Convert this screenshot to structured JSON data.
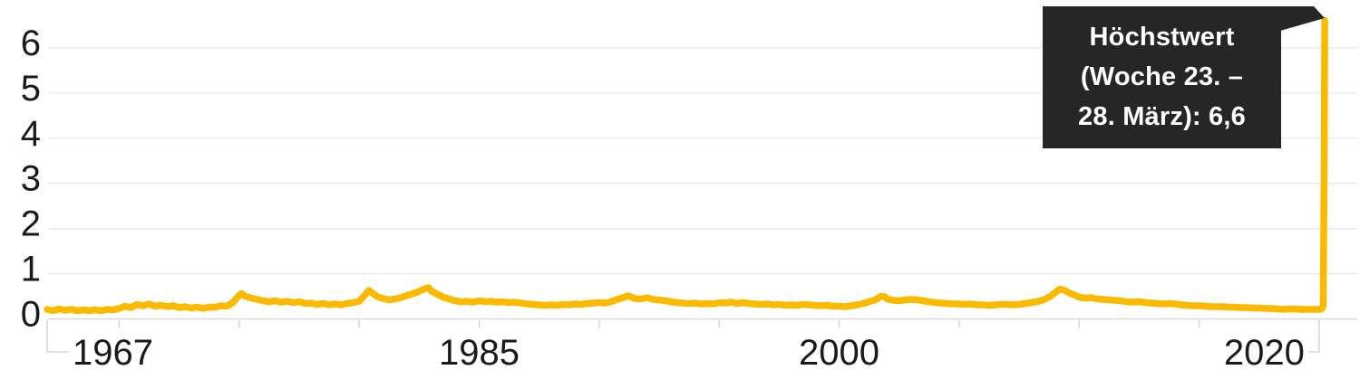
{
  "chart_data": {
    "type": "line",
    "y_axis": {
      "tick_labels": [
        "0",
        "1",
        "2",
        "3",
        "4",
        "5",
        "6"
      ],
      "ticks": [
        0,
        1,
        2,
        3,
        4,
        5,
        6
      ],
      "range": [
        0,
        6.7
      ],
      "grid": true
    },
    "x_axis": {
      "labeled_ticks": [
        {
          "year": 1967,
          "label": "1967"
        },
        {
          "year": 1985,
          "label": "1985"
        },
        {
          "year": 2000,
          "label": "2000"
        },
        {
          "year": 2020,
          "label": "2020"
        }
      ],
      "minor_tick_years": [
        1970,
        1975,
        1980,
        1985,
        1990,
        1995,
        2000,
        2005,
        2010,
        2015,
        2020
      ],
      "range": [
        1967,
        2021.6
      ]
    },
    "annotation": {
      "lines": [
        "Höchstwert",
        "(Woche 23. –",
        "28. März): 6,6"
      ],
      "value": 6.6,
      "anchor_year": 2020.235
    },
    "series": [
      {
        "points": [
          [
            1967.0,
            0.21
          ],
          [
            1967.25,
            0.18
          ],
          [
            1967.5,
            0.22
          ],
          [
            1967.75,
            0.19
          ],
          [
            1968.0,
            0.21
          ],
          [
            1968.25,
            0.18
          ],
          [
            1968.5,
            0.2
          ],
          [
            1968.75,
            0.18
          ],
          [
            1969.0,
            0.2
          ],
          [
            1969.25,
            0.18
          ],
          [
            1969.5,
            0.21
          ],
          [
            1969.75,
            0.2
          ],
          [
            1970.0,
            0.23
          ],
          [
            1970.25,
            0.28
          ],
          [
            1970.5,
            0.25
          ],
          [
            1970.75,
            0.32
          ],
          [
            1971.0,
            0.29
          ],
          [
            1971.25,
            0.33
          ],
          [
            1971.5,
            0.28
          ],
          [
            1971.75,
            0.3
          ],
          [
            1972.0,
            0.27
          ],
          [
            1972.25,
            0.29
          ],
          [
            1972.5,
            0.25
          ],
          [
            1972.75,
            0.27
          ],
          [
            1973.0,
            0.24
          ],
          [
            1973.25,
            0.26
          ],
          [
            1973.5,
            0.23
          ],
          [
            1973.75,
            0.26
          ],
          [
            1974.0,
            0.26
          ],
          [
            1974.25,
            0.29
          ],
          [
            1974.5,
            0.28
          ],
          [
            1974.75,
            0.37
          ],
          [
            1975.0,
            0.52
          ],
          [
            1975.1,
            0.56
          ],
          [
            1975.25,
            0.5
          ],
          [
            1975.5,
            0.46
          ],
          [
            1975.75,
            0.43
          ],
          [
            1976.0,
            0.4
          ],
          [
            1976.25,
            0.38
          ],
          [
            1976.5,
            0.4
          ],
          [
            1976.75,
            0.37
          ],
          [
            1977.0,
            0.39
          ],
          [
            1977.25,
            0.36
          ],
          [
            1977.5,
            0.38
          ],
          [
            1977.75,
            0.34
          ],
          [
            1978.0,
            0.35
          ],
          [
            1978.25,
            0.32
          ],
          [
            1978.5,
            0.34
          ],
          [
            1978.75,
            0.31
          ],
          [
            1979.0,
            0.33
          ],
          [
            1979.25,
            0.31
          ],
          [
            1979.5,
            0.34
          ],
          [
            1979.75,
            0.36
          ],
          [
            1980.0,
            0.39
          ],
          [
            1980.2,
            0.5
          ],
          [
            1980.4,
            0.63
          ],
          [
            1980.6,
            0.55
          ],
          [
            1980.8,
            0.48
          ],
          [
            1981.0,
            0.45
          ],
          [
            1981.25,
            0.42
          ],
          [
            1981.5,
            0.44
          ],
          [
            1981.75,
            0.47
          ],
          [
            1982.0,
            0.52
          ],
          [
            1982.25,
            0.56
          ],
          [
            1982.5,
            0.61
          ],
          [
            1982.75,
            0.67
          ],
          [
            1982.9,
            0.69
          ],
          [
            1983.0,
            0.62
          ],
          [
            1983.25,
            0.55
          ],
          [
            1983.5,
            0.48
          ],
          [
            1983.75,
            0.44
          ],
          [
            1984.0,
            0.4
          ],
          [
            1984.25,
            0.38
          ],
          [
            1984.5,
            0.39
          ],
          [
            1984.75,
            0.37
          ],
          [
            1985.0,
            0.4
          ],
          [
            1985.25,
            0.38
          ],
          [
            1985.5,
            0.39
          ],
          [
            1985.75,
            0.37
          ],
          [
            1986.0,
            0.38
          ],
          [
            1986.25,
            0.36
          ],
          [
            1986.5,
            0.37
          ],
          [
            1986.75,
            0.35
          ],
          [
            1987.0,
            0.33
          ],
          [
            1987.25,
            0.32
          ],
          [
            1987.5,
            0.31
          ],
          [
            1987.75,
            0.3
          ],
          [
            1988.0,
            0.31
          ],
          [
            1988.25,
            0.3
          ],
          [
            1988.5,
            0.32
          ],
          [
            1988.75,
            0.31
          ],
          [
            1989.0,
            0.33
          ],
          [
            1989.25,
            0.32
          ],
          [
            1989.5,
            0.34
          ],
          [
            1989.75,
            0.35
          ],
          [
            1990.0,
            0.36
          ],
          [
            1990.25,
            0.35
          ],
          [
            1990.5,
            0.38
          ],
          [
            1990.75,
            0.43
          ],
          [
            1991.0,
            0.47
          ],
          [
            1991.2,
            0.51
          ],
          [
            1991.5,
            0.45
          ],
          [
            1991.75,
            0.44
          ],
          [
            1992.0,
            0.47
          ],
          [
            1992.25,
            0.43
          ],
          [
            1992.5,
            0.42
          ],
          [
            1992.75,
            0.4
          ],
          [
            1993.0,
            0.38
          ],
          [
            1993.25,
            0.36
          ],
          [
            1993.5,
            0.35
          ],
          [
            1993.75,
            0.34
          ],
          [
            1994.0,
            0.35
          ],
          [
            1994.25,
            0.33
          ],
          [
            1994.5,
            0.34
          ],
          [
            1994.75,
            0.33
          ],
          [
            1995.0,
            0.36
          ],
          [
            1995.25,
            0.35
          ],
          [
            1995.5,
            0.37
          ],
          [
            1995.75,
            0.34
          ],
          [
            1996.0,
            0.36
          ],
          [
            1996.25,
            0.34
          ],
          [
            1996.5,
            0.33
          ],
          [
            1996.75,
            0.32
          ],
          [
            1997.0,
            0.33
          ],
          [
            1997.25,
            0.31
          ],
          [
            1997.5,
            0.32
          ],
          [
            1997.75,
            0.3
          ],
          [
            1998.0,
            0.31
          ],
          [
            1998.25,
            0.3
          ],
          [
            1998.5,
            0.32
          ],
          [
            1998.75,
            0.31
          ],
          [
            1999.0,
            0.3
          ],
          [
            1999.25,
            0.29
          ],
          [
            1999.5,
            0.3
          ],
          [
            1999.75,
            0.28
          ],
          [
            2000.0,
            0.28
          ],
          [
            2000.25,
            0.27
          ],
          [
            2000.5,
            0.29
          ],
          [
            2000.75,
            0.31
          ],
          [
            2001.0,
            0.34
          ],
          [
            2001.25,
            0.38
          ],
          [
            2001.5,
            0.42
          ],
          [
            2001.75,
            0.5
          ],
          [
            2001.9,
            0.49
          ],
          [
            2002.0,
            0.44
          ],
          [
            2002.25,
            0.41
          ],
          [
            2002.5,
            0.4
          ],
          [
            2002.75,
            0.42
          ],
          [
            2003.0,
            0.43
          ],
          [
            2003.25,
            0.42
          ],
          [
            2003.5,
            0.4
          ],
          [
            2003.75,
            0.38
          ],
          [
            2004.0,
            0.36
          ],
          [
            2004.25,
            0.35
          ],
          [
            2004.5,
            0.34
          ],
          [
            2004.75,
            0.33
          ],
          [
            2005.0,
            0.33
          ],
          [
            2005.25,
            0.32
          ],
          [
            2005.5,
            0.33
          ],
          [
            2005.75,
            0.31
          ],
          [
            2006.0,
            0.31
          ],
          [
            2006.25,
            0.3
          ],
          [
            2006.5,
            0.31
          ],
          [
            2006.75,
            0.32
          ],
          [
            2007.0,
            0.32
          ],
          [
            2007.25,
            0.31
          ],
          [
            2007.5,
            0.32
          ],
          [
            2007.75,
            0.34
          ],
          [
            2008.0,
            0.36
          ],
          [
            2008.25,
            0.38
          ],
          [
            2008.5,
            0.42
          ],
          [
            2008.75,
            0.48
          ],
          [
            2009.0,
            0.58
          ],
          [
            2009.2,
            0.66
          ],
          [
            2009.4,
            0.63
          ],
          [
            2009.6,
            0.57
          ],
          [
            2009.8,
            0.53
          ],
          [
            2010.0,
            0.48
          ],
          [
            2010.25,
            0.46
          ],
          [
            2010.5,
            0.47
          ],
          [
            2010.75,
            0.44
          ],
          [
            2011.0,
            0.43
          ],
          [
            2011.25,
            0.42
          ],
          [
            2011.5,
            0.41
          ],
          [
            2011.75,
            0.4
          ],
          [
            2012.0,
            0.38
          ],
          [
            2012.25,
            0.37
          ],
          [
            2012.5,
            0.38
          ],
          [
            2012.75,
            0.36
          ],
          [
            2013.0,
            0.35
          ],
          [
            2013.25,
            0.34
          ],
          [
            2013.5,
            0.33
          ],
          [
            2013.75,
            0.34
          ],
          [
            2014.0,
            0.33
          ],
          [
            2014.25,
            0.31
          ],
          [
            2014.5,
            0.3
          ],
          [
            2014.75,
            0.29
          ],
          [
            2015.0,
            0.29
          ],
          [
            2015.25,
            0.28
          ],
          [
            2015.5,
            0.27
          ],
          [
            2015.75,
            0.27
          ],
          [
            2016.0,
            0.27
          ],
          [
            2016.25,
            0.26
          ],
          [
            2016.5,
            0.26
          ],
          [
            2016.75,
            0.25
          ],
          [
            2017.0,
            0.25
          ],
          [
            2017.25,
            0.24
          ],
          [
            2017.5,
            0.24
          ],
          [
            2017.75,
            0.23
          ],
          [
            2018.0,
            0.23
          ],
          [
            2018.25,
            0.22
          ],
          [
            2018.5,
            0.21
          ],
          [
            2018.75,
            0.22
          ],
          [
            2019.0,
            0.22
          ],
          [
            2019.25,
            0.21
          ],
          [
            2019.5,
            0.21
          ],
          [
            2019.75,
            0.21
          ],
          [
            2020.0,
            0.21
          ],
          [
            2020.1,
            0.22
          ],
          [
            2020.17,
            0.28
          ],
          [
            2020.21,
            3.31
          ],
          [
            2020.235,
            6.61
          ]
        ]
      }
    ],
    "colors": {
      "line": "#fbba00",
      "annotation_bg": "#262626",
      "annotation_text": "#ffffff",
      "grid": "#e8e8e8",
      "baseline": "#d9d9d9",
      "tick": "#cfcfcf",
      "axis_text": "#1a1a1a"
    }
  }
}
